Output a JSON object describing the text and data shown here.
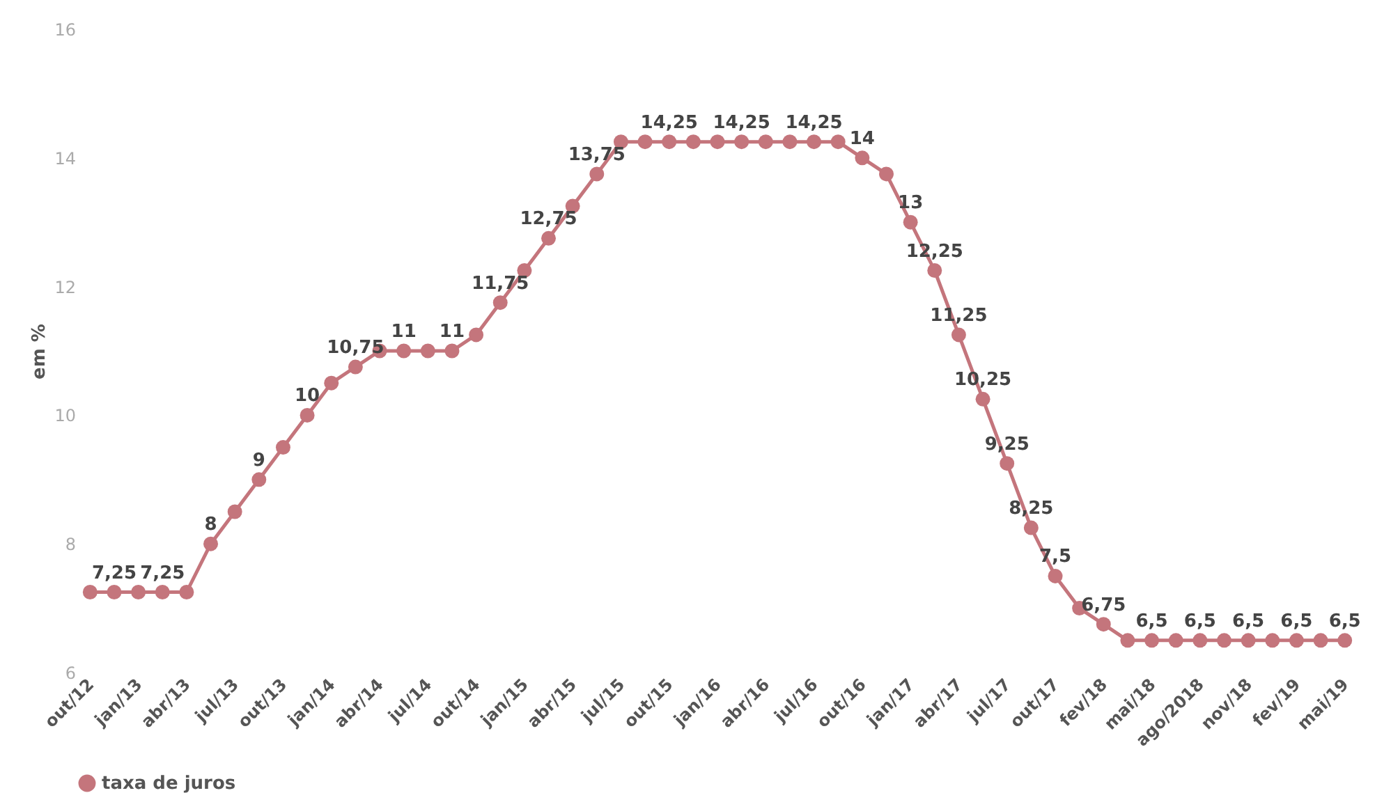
{
  "chart_data": {
    "type": "line",
    "ylabel": "em %",
    "categories": [
      "out/12",
      null,
      "jan/13",
      null,
      "abr/13",
      null,
      "jul/13",
      null,
      "out/13",
      null,
      "jan/14",
      null,
      "abr/14",
      null,
      "jul/14",
      null,
      "out/14",
      null,
      "jan/15",
      null,
      "abr/15",
      null,
      "jul/15",
      null,
      "out/15",
      null,
      "jan/16",
      null,
      "abr/16",
      null,
      "jul/16",
      null,
      "out/16",
      null,
      "jan/17",
      null,
      "abr/17",
      null,
      "jul/17",
      null,
      "out/17",
      null,
      "fev/18",
      null,
      "mai/18",
      null,
      "ago/2018",
      null,
      "nov/18",
      null,
      "fev/19",
      null,
      "mai/19"
    ],
    "series": [
      {
        "name": "taxa de juros",
        "color": "#c4757c",
        "values": [
          7.25,
          7.25,
          7.25,
          7.25,
          7.25,
          8,
          8.5,
          9,
          9.5,
          10,
          10.5,
          10.75,
          11,
          11,
          11,
          11,
          11.25,
          11.75,
          12.25,
          12.75,
          13.25,
          13.75,
          14.25,
          14.25,
          14.25,
          14.25,
          14.25,
          14.25,
          14.25,
          14.25,
          14.25,
          14.25,
          14,
          13.75,
          13,
          12.25,
          11.25,
          10.25,
          9.25,
          8.25,
          7.5,
          7,
          6.75,
          6.5,
          6.5,
          6.5,
          6.5,
          6.5,
          6.5,
          6.5,
          6.5,
          6.5,
          6.5
        ],
        "value_labels": [
          null,
          "7,25",
          null,
          "7,25",
          null,
          "8",
          null,
          "9",
          null,
          "10",
          null,
          "10,75",
          null,
          "11",
          null,
          "11",
          null,
          "11,75",
          null,
          "12,75",
          null,
          "13,75",
          null,
          null,
          "14,25",
          null,
          null,
          "14,25",
          null,
          null,
          "14,25",
          null,
          "14",
          null,
          "13",
          "12,25",
          "11,25",
          "10,25",
          "9,25",
          "8,25",
          "7,5",
          null,
          "6,75",
          null,
          "6,5",
          null,
          "6,5",
          null,
          "6,5",
          null,
          "6,5",
          null,
          "6,5"
        ]
      }
    ],
    "ylim": [
      6,
      16
    ],
    "yticks": [
      6,
      8,
      10,
      12,
      14,
      16
    ],
    "grid": false,
    "legend": "bottom",
    "marker": "circle",
    "line_style": "solid"
  }
}
